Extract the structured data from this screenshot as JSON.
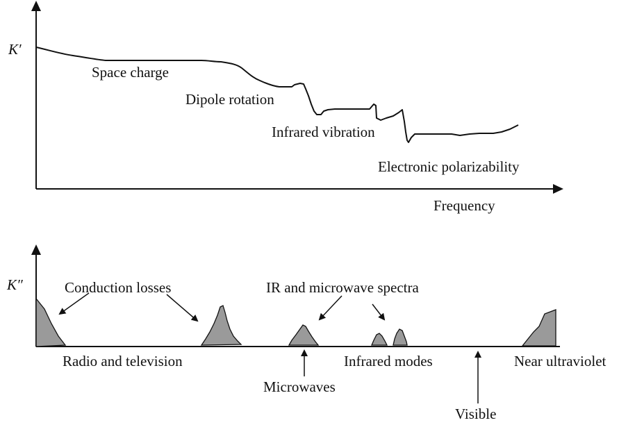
{
  "colors": {
    "ink": "#111111",
    "peak_fill": "#9a9a9a",
    "background": "#ffffff"
  },
  "top_panel": {
    "y_axis_label": "K′",
    "x_axis_label": "Frequency",
    "regions": [
      "Space charge",
      "Dipole rotation",
      "Infrared vibration",
      "Electronic polarizability"
    ]
  },
  "bottom_panel": {
    "y_axis_label": "K″",
    "annotations": [
      "Conduction losses",
      "IR and microwave spectra"
    ],
    "bands": [
      "Radio and television",
      "Microwaves",
      "Infrared modes",
      "Visible",
      "Near ultraviolet"
    ]
  }
}
